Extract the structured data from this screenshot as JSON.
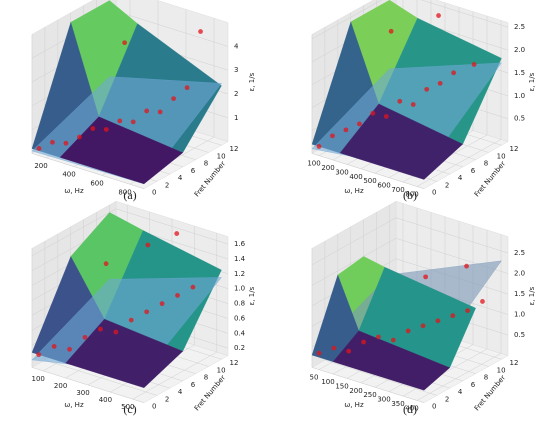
{
  "chart_data": [
    {
      "type": "surface3d",
      "label": "(a)",
      "x_label": "ω, Hz",
      "y_label": "Fret Number",
      "z_label": "ε, 1/s",
      "xlim": [
        100,
        900
      ],
      "ylim": [
        0,
        13
      ],
      "zlim": [
        0,
        5
      ],
      "xticks": [
        200,
        400,
        600,
        800
      ],
      "yticks": [
        0,
        2,
        4,
        6,
        8,
        10,
        12
      ],
      "zticks": [
        1,
        2,
        3,
        4
      ],
      "surface": {
        "x": [
          100,
          300,
          900
        ],
        "y": [
          0,
          6,
          12
        ],
        "z": [
          [
            0.2,
            0.2,
            0.2
          ],
          [
            4.6,
            1.0,
            0.6
          ],
          [
            4.6,
            4.0,
            2.5
          ]
        ],
        "colormap": "viridis"
      },
      "plane": {
        "x": [
          100,
          900
        ],
        "y": [
          0,
          12
        ],
        "z": [
          [
            0.1,
            0.2
          ],
          [
            1.4,
            2.6
          ]
        ],
        "color": "#6fa8d6"
      },
      "points": {
        "x": [
          150,
          200,
          250,
          300,
          350,
          400,
          450,
          500,
          550,
          600,
          650,
          700,
          750,
          300
        ],
        "y": [
          0,
          1,
          2,
          3,
          4,
          5,
          6,
          7,
          8,
          9,
          10,
          11,
          12,
          10
        ],
        "z": [
          0.3,
          0.5,
          0.4,
          0.6,
          0.9,
          0.8,
          1.1,
          1.0,
          1.4,
          1.3,
          1.8,
          2.2,
          4.5,
          3.5
        ],
        "color": "#e3141b"
      }
    },
    {
      "type": "surface3d",
      "label": "(b)",
      "x_label": "ω, Hz",
      "y_label": "Fret Number",
      "z_label": "ε, 1/s",
      "xlim": [
        50,
        850
      ],
      "ylim": [
        0,
        13
      ],
      "zlim": [
        0,
        2.6
      ],
      "xticks": [
        100,
        200,
        300,
        400,
        500,
        600,
        700,
        800
      ],
      "yticks": [
        0,
        2,
        4,
        6,
        8,
        10,
        12
      ],
      "zticks": [
        0.5,
        {
          "value": 1,
          "label": "1.0"
        },
        1.5,
        {
          "value": 2,
          "label": "2.0"
        },
        2.5
      ],
      "surface": {
        "x": [
          50,
          250,
          850
        ],
        "y": [
          0,
          6,
          12
        ],
        "z": [
          [
            0.2,
            0.2,
            0.2
          ],
          [
            2.4,
            0.8,
            0.5
          ],
          [
            2.4,
            2.2,
            1.9
          ]
        ],
        "colormap": "viridis"
      },
      "plane": {
        "x": [
          50,
          850
        ],
        "y": [
          0,
          12
        ],
        "z": [
          [
            0.1,
            0.4
          ],
          [
            0.9,
            1.8
          ]
        ],
        "color": "#6fa8d6"
      },
      "points": {
        "x": [
          100,
          150,
          200,
          250,
          300,
          350,
          400,
          450,
          500,
          550,
          600,
          700,
          200,
          400
        ],
        "y": [
          0,
          1,
          2,
          3,
          4,
          5,
          6,
          7,
          8,
          9,
          10,
          11,
          9,
          12
        ],
        "z": [
          0.2,
          0.4,
          0.5,
          0.6,
          0.8,
          0.7,
          1.0,
          0.9,
          1.2,
          1.3,
          1.5,
          1.7,
          2.1,
          2.4
        ],
        "color": "#e3141b"
      }
    },
    {
      "type": "surface3d",
      "label": "(c)",
      "x_label": "ω, Hz",
      "y_label": "Fret Number",
      "z_label": "ε, 1/s",
      "xlim": [
        50,
        550
      ],
      "ylim": [
        0,
        13
      ],
      "zlim": [
        0.1,
        1.7
      ],
      "xticks": [
        100,
        200,
        300,
        400,
        500
      ],
      "yticks": [
        0,
        2,
        4,
        6,
        8,
        10,
        12
      ],
      "zticks": [
        0.2,
        0.4,
        0.6,
        0.8,
        {
          "value": 1,
          "label": "1.0"
        },
        1.2,
        1.4,
        1.6
      ],
      "surface": {
        "x": [
          50,
          200,
          550
        ],
        "y": [
          0,
          6,
          12
        ],
        "z": [
          [
            0.3,
            0.3,
            0.3
          ],
          [
            1.3,
            0.6,
            0.5
          ],
          [
            1.6,
            1.5,
            1.3
          ]
        ],
        "colormap": "viridis"
      },
      "plane": {
        "x": [
          50,
          550
        ],
        "y": [
          0,
          12
        ],
        "z": [
          [
            0.2,
            0.5
          ],
          [
            0.7,
            1.2
          ]
        ],
        "color": "#6fa8d6"
      },
      "points": {
        "x": [
          80,
          120,
          160,
          200,
          240,
          280,
          320,
          360,
          400,
          440,
          480,
          150,
          250,
          350
        ],
        "y": [
          0,
          1,
          2,
          3,
          4,
          5,
          6,
          7,
          8,
          9,
          10,
          8,
          11,
          12
        ],
        "z": [
          0.3,
          0.4,
          0.35,
          0.5,
          0.6,
          0.55,
          0.7,
          0.8,
          0.9,
          1.0,
          1.1,
          1.2,
          1.4,
          1.6
        ],
        "color": "#e3141b"
      }
    },
    {
      "type": "surface3d",
      "label": "(d)",
      "x_label": "ω, Hz",
      "y_label": "Fret Number",
      "z_label": "ε, 1/s",
      "xlim": [
        25,
        425
      ],
      "ylim": [
        0,
        13
      ],
      "zlim": [
        0,
        2.9
      ],
      "xticks": [
        50,
        100,
        150,
        200,
        250,
        300,
        350,
        400
      ],
      "yticks": [
        0,
        2,
        4,
        6,
        8,
        10,
        12
      ],
      "zticks": [
        0.5,
        {
          "value": 1,
          "label": "1.0"
        },
        1.5,
        {
          "value": 2,
          "label": "2.0"
        },
        2.5
      ],
      "surface": {
        "x": [
          25,
          100,
          425
        ],
        "y": [
          0,
          4,
          8
        ],
        "z": [
          [
            0.3,
            0.3,
            0.3
          ],
          [
            1.9,
            0.7,
            0.5
          ],
          [
            2.0,
            1.9,
            1.6
          ]
        ],
        "colormap": "viridis"
      },
      "plane": {
        "x": [
          25,
          425
        ],
        "y": [
          0,
          12
        ],
        "z": [
          [
            0.3,
            0.8
          ],
          [
            1.2,
            2.4
          ]
        ],
        "color": "#7b98b8"
      },
      "points": {
        "x": [
          50,
          80,
          110,
          140,
          170,
          200,
          230,
          260,
          290,
          320,
          350,
          380,
          200,
          300
        ],
        "y": [
          0,
          1,
          2,
          3,
          4,
          5,
          6,
          7,
          8,
          9,
          10,
          11,
          10,
          12
        ],
        "z": [
          0.4,
          0.5,
          0.4,
          0.6,
          0.7,
          0.6,
          0.8,
          0.9,
          1.0,
          1.1,
          1.2,
          1.4,
          1.7,
          2.0
        ],
        "color": "#e3141b"
      }
    }
  ]
}
